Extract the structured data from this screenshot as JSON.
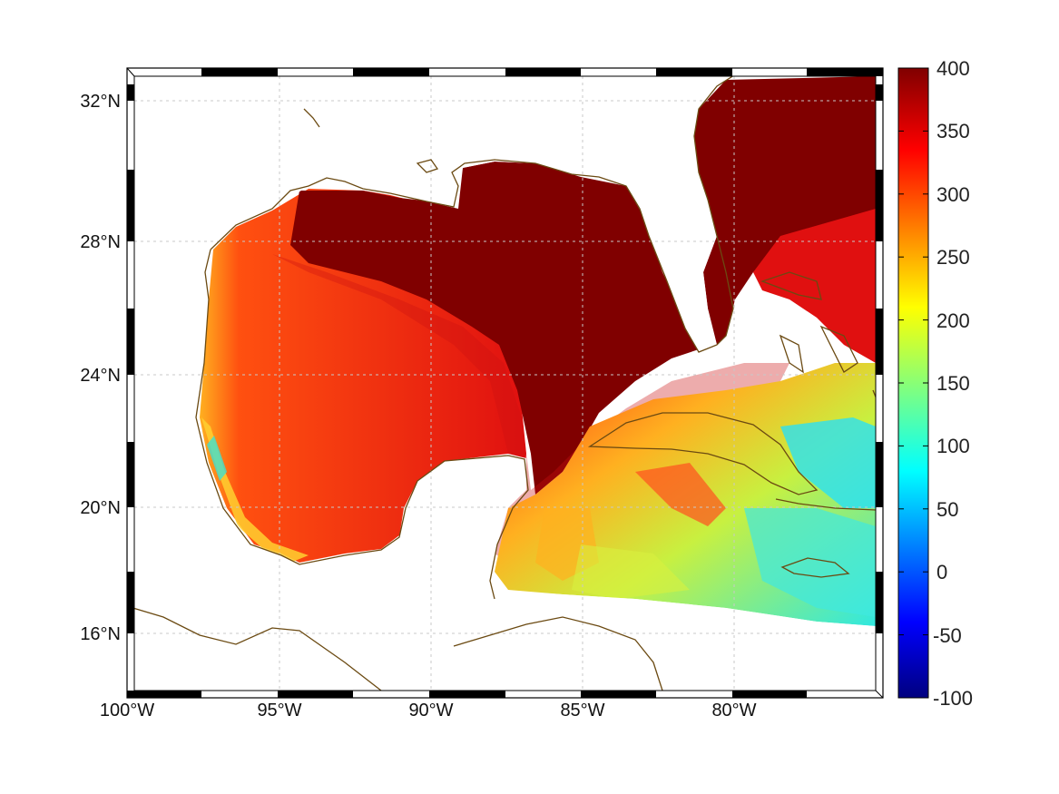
{
  "map": {
    "lon_ticks": [
      "100°W",
      "95°W",
      "90°W",
      "85°W",
      "80°W"
    ],
    "lat_ticks": [
      "32°N",
      "28°N",
      "24°N",
      "20°N",
      "16°N"
    ],
    "lon_range": [
      -100,
      -75
    ],
    "lat_range": [
      14.2,
      33
    ],
    "colorbar": {
      "ticks": [
        "400",
        "350",
        "300",
        "250",
        "200",
        "150",
        "100",
        "50",
        "0",
        "-50",
        "-100"
      ],
      "range": [
        -100,
        400
      ],
      "colormap": "jet"
    },
    "colors": {
      "coastline": "#6b4a12",
      "deep_red": "#800000",
      "red": "#e01010",
      "orange": "#ff7a00",
      "yellow": "#f0f020",
      "cyan": "#20e0f0",
      "blue": "#0000ff",
      "navy": "#00007f"
    }
  }
}
